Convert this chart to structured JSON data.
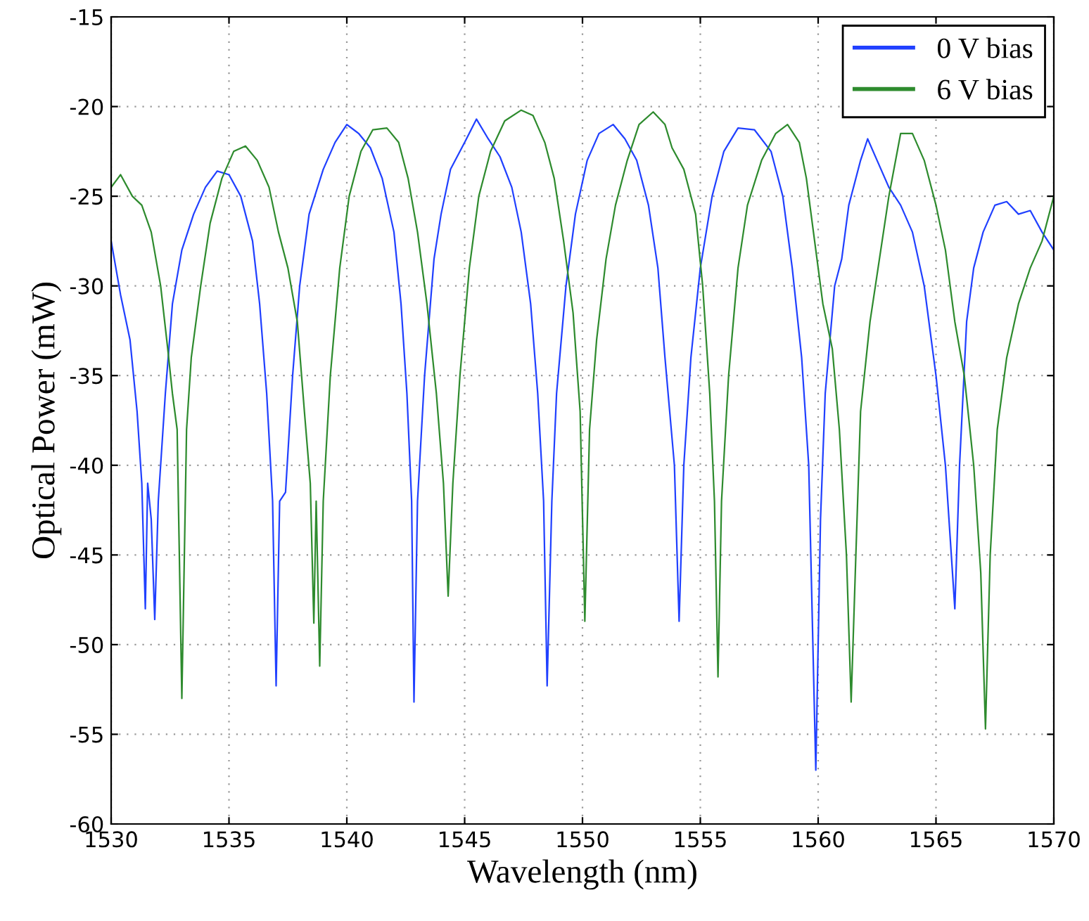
{
  "chart_data": {
    "type": "line",
    "xlabel": "Wavelength (nm)",
    "ylabel": "Optical Power (mW)",
    "xlim": [
      1530,
      1570
    ],
    "xticks": [
      1530,
      1535,
      1540,
      1545,
      1550,
      1555,
      1560,
      1565,
      1570
    ],
    "ylim": [
      -60,
      -15
    ],
    "yticks": [
      -60,
      -55,
      -50,
      -45,
      -40,
      -35,
      -30,
      -25,
      -20,
      -15
    ],
    "grid": true,
    "legend": "top right",
    "line_style": "solid",
    "marker": "none",
    "series": [
      {
        "name": "0 V bias",
        "color": "#2040ff",
        "x": [
          1530.0,
          1530.4,
          1530.8,
          1531.1,
          1531.3,
          1531.45,
          1531.55,
          1531.7,
          1531.85,
          1532.0,
          1532.3,
          1532.6,
          1533.0,
          1533.5,
          1534.0,
          1534.5,
          1535.0,
          1535.5,
          1536.0,
          1536.3,
          1536.6,
          1536.85,
          1537.0,
          1537.15,
          1537.4,
          1537.7,
          1538.0,
          1538.4,
          1539.0,
          1539.5,
          1540.0,
          1540.5,
          1541.0,
          1541.5,
          1542.0,
          1542.3,
          1542.55,
          1542.75,
          1542.85,
          1543.0,
          1543.3,
          1543.7,
          1544.0,
          1544.4,
          1545.0,
          1545.5,
          1546.0,
          1546.5,
          1547.0,
          1547.4,
          1547.8,
          1548.1,
          1548.35,
          1548.5,
          1548.7,
          1548.9,
          1549.3,
          1549.7,
          1550.2,
          1550.7,
          1551.3,
          1551.8,
          1552.3,
          1552.8,
          1553.2,
          1553.5,
          1553.7,
          1553.9,
          1554.1,
          1554.3,
          1554.6,
          1555.0,
          1555.5,
          1556.0,
          1556.6,
          1557.3,
          1558.0,
          1558.5,
          1558.9,
          1559.3,
          1559.6,
          1559.9,
          1560.1,
          1560.3,
          1560.7,
          1561.0,
          1561.3,
          1561.8,
          1562.1,
          1562.5,
          1563.0,
          1563.5,
          1564.0,
          1564.5,
          1565.0,
          1565.4,
          1565.8,
          1566.0,
          1566.3,
          1566.6,
          1567.0,
          1567.5,
          1568.0,
          1568.5,
          1569.0,
          1569.5,
          1570.0
        ],
        "values": [
          -27.5,
          -30.5,
          -33,
          -37,
          -41,
          -48,
          -41,
          -43,
          -48.6,
          -42,
          -36,
          -31,
          -28,
          -26,
          -24.5,
          -23.6,
          -23.8,
          -25,
          -27.5,
          -31,
          -36,
          -42,
          -52.3,
          -42,
          -41.5,
          -35,
          -30,
          -26,
          -23.5,
          -22,
          -21,
          -21.5,
          -22.3,
          -24,
          -27,
          -31,
          -36,
          -42,
          -53.2,
          -42,
          -35,
          -28.5,
          -26,
          -23.5,
          -22,
          -20.7,
          -21.8,
          -22.8,
          -24.5,
          -27,
          -31,
          -36,
          -42,
          -52.3,
          -42,
          -36,
          -30,
          -26,
          -23,
          -21.5,
          -21,
          -21.8,
          -23,
          -25.5,
          -29,
          -34,
          -37,
          -40,
          -48.7,
          -40,
          -34,
          -29,
          -25,
          -22.5,
          -21.2,
          -21.3,
          -22.5,
          -25,
          -29,
          -34,
          -40,
          -57,
          -43,
          -36,
          -30,
          -28.5,
          -25.5,
          -23,
          -21.8,
          -23,
          -24.5,
          -25.5,
          -27,
          -30,
          -35,
          -40,
          -48,
          -40,
          -32,
          -29,
          -27,
          -25.5,
          -25.3,
          -26,
          -25.8,
          -27,
          -28
        ]
      },
      {
        "name": "6 V bias",
        "color": "#2e8b2e",
        "x": [
          1530.0,
          1530.4,
          1530.9,
          1531.3,
          1531.7,
          1532.1,
          1532.4,
          1532.6,
          1532.8,
          1533.0,
          1533.2,
          1533.4,
          1533.8,
          1534.2,
          1534.7,
          1535.2,
          1535.7,
          1536.2,
          1536.7,
          1537.1,
          1537.5,
          1537.9,
          1538.2,
          1538.45,
          1538.6,
          1538.7,
          1538.85,
          1539.0,
          1539.3,
          1539.7,
          1540.1,
          1540.6,
          1541.1,
          1541.7,
          1542.2,
          1542.6,
          1543.0,
          1543.4,
          1543.8,
          1544.1,
          1544.3,
          1544.5,
          1544.8,
          1545.2,
          1545.6,
          1546.1,
          1546.7,
          1547.4,
          1547.9,
          1548.4,
          1548.8,
          1549.2,
          1549.6,
          1549.9,
          1550.1,
          1550.3,
          1550.6,
          1551.0,
          1551.4,
          1551.9,
          1552.4,
          1553.0,
          1553.5,
          1553.8,
          1554.3,
          1554.8,
          1555.1,
          1555.4,
          1555.6,
          1555.75,
          1555.9,
          1556.2,
          1556.6,
          1557.0,
          1557.6,
          1558.2,
          1558.7,
          1559.2,
          1559.5,
          1559.8,
          1560.2,
          1560.6,
          1560.9,
          1561.2,
          1561.4,
          1561.6,
          1561.8,
          1562.2,
          1562.6,
          1563.0,
          1563.5,
          1564.0,
          1564.5,
          1565.0,
          1565.4,
          1565.8,
          1566.2,
          1566.6,
          1566.9,
          1567.1,
          1567.3,
          1567.6,
          1568.0,
          1568.5,
          1569.0,
          1569.5,
          1570.0
        ],
        "values": [
          -24.5,
          -23.8,
          -25,
          -25.5,
          -27,
          -30,
          -33.5,
          -36,
          -38,
          -53,
          -38,
          -34,
          -30,
          -26.5,
          -24,
          -22.5,
          -22.2,
          -23,
          -24.5,
          -27,
          -29,
          -32,
          -37,
          -41,
          -48.8,
          -42,
          -51.2,
          -42,
          -35,
          -29,
          -25,
          -22.5,
          -21.3,
          -21.2,
          -22,
          -24,
          -27,
          -31,
          -36,
          -41,
          -47.3,
          -41,
          -35,
          -29,
          -25,
          -22.5,
          -20.8,
          -20.2,
          -20.5,
          -22,
          -24,
          -27.5,
          -31.5,
          -37,
          -48.7,
          -38,
          -33,
          -28.5,
          -25.5,
          -23,
          -21,
          -20.3,
          -21,
          -22.3,
          -23.5,
          -26,
          -30,
          -36,
          -42,
          -51.8,
          -42,
          -35,
          -29,
          -25.5,
          -23,
          -21.5,
          -21,
          -22,
          -24,
          -27,
          -31,
          -33.5,
          -38,
          -45,
          -53.2,
          -45,
          -37,
          -32,
          -28.5,
          -25,
          -21.5,
          -21.5,
          -23,
          -25.5,
          -28,
          -32,
          -35,
          -40,
          -46,
          -54.7,
          -45,
          -38,
          -34,
          -31,
          -29,
          -27.5,
          -25
        ]
      }
    ]
  }
}
